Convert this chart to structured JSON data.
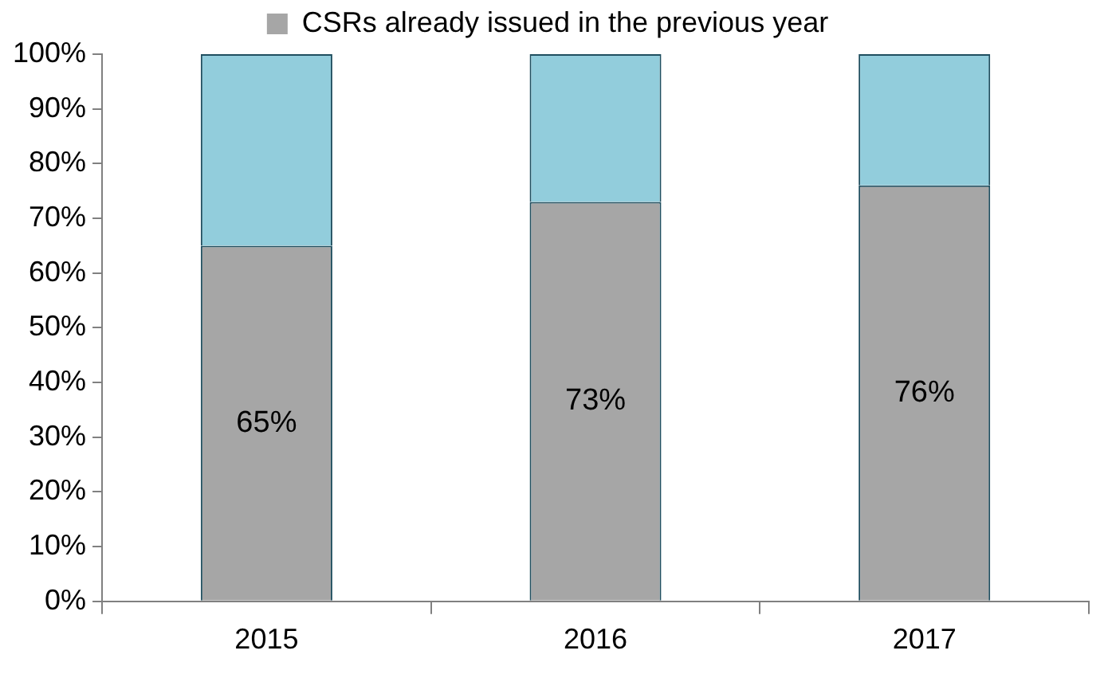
{
  "chart_data": {
    "type": "bar",
    "stacked": true,
    "categories": [
      "2015",
      "2016",
      "2017"
    ],
    "series": [
      {
        "name": "CSRs already issued in the previous year",
        "color": "#a6a6a6",
        "values": [
          65,
          73,
          76
        ],
        "value_labels": [
          "65%",
          "73%",
          "76%"
        ]
      },
      {
        "color": "#92cddc",
        "values": [
          35,
          27,
          24
        ]
      }
    ],
    "ylim": [
      0,
      100
    ],
    "yticks": [
      {
        "value": 0,
        "label": "0%"
      },
      {
        "value": 10,
        "label": "10%"
      },
      {
        "value": 20,
        "label": "20%"
      },
      {
        "value": 30,
        "label": "30%"
      },
      {
        "value": 40,
        "label": "40%"
      },
      {
        "value": 50,
        "label": "50%"
      },
      {
        "value": 60,
        "label": "60%"
      },
      {
        "value": 70,
        "label": "70%"
      },
      {
        "value": 80,
        "label": "80%"
      },
      {
        "value": 90,
        "label": "90%"
      },
      {
        "value": 100,
        "label": "100%"
      }
    ],
    "grid": false,
    "legend": "top"
  }
}
